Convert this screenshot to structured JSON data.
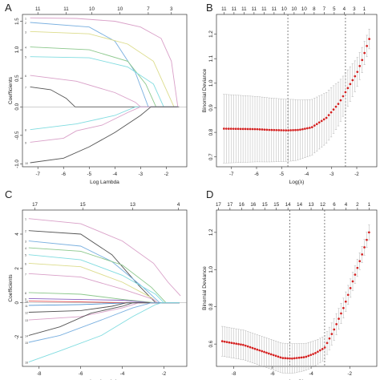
{
  "chart_data": [
    {
      "panel": "A",
      "type": "line",
      "xlabel": "Log Lambda",
      "ylabel": "Coefficients",
      "xlim": [
        -7.6,
        -1.2
      ],
      "ylim": [
        -1.05,
        1.62
      ],
      "xticks": [
        -7,
        -6,
        -5,
        -4,
        -3,
        -2
      ],
      "yticks": [
        -1.0,
        -0.5,
        0.0,
        0.5,
        1.0,
        1.5
      ],
      "top_axis": {
        "ticks": [
          -7.0,
          -5.9,
          -4.9,
          -3.8,
          -2.7,
          -1.8
        ],
        "labels": [
          "11",
          "11",
          "10",
          "10",
          "7",
          "3"
        ]
      },
      "series": [
        {
          "color": "#d9a0c8",
          "points": [
            [
              -7.3,
              1.56
            ],
            [
              -5.5,
              1.55
            ],
            [
              -4,
              1.5
            ],
            [
              -3,
              1.4
            ],
            [
              -2.2,
              1.2
            ],
            [
              -1.8,
              0.8
            ],
            [
              -1.55,
              0.0
            ]
          ]
        },
        {
          "color": "#7ab0e0",
          "points": [
            [
              -7.3,
              1.48
            ],
            [
              -5,
              1.4
            ],
            [
              -4,
              1.15
            ],
            [
              -3.2,
              0.6
            ],
            [
              -2.7,
              0.0
            ]
          ]
        },
        {
          "color": "#dcdc8c",
          "points": [
            [
              -7.3,
              1.32
            ],
            [
              -5,
              1.28
            ],
            [
              -3.5,
              1.1
            ],
            [
              -2.5,
              0.8
            ],
            [
              -2,
              0.3
            ],
            [
              -1.7,
              0.0
            ]
          ]
        },
        {
          "color": "#8cc88c",
          "points": [
            [
              -7.3,
              1.05
            ],
            [
              -5,
              1.0
            ],
            [
              -3.5,
              0.8
            ],
            [
              -2.8,
              0.4
            ],
            [
              -2.4,
              0.0
            ]
          ]
        },
        {
          "color": "#80dce0",
          "points": [
            [
              -7.3,
              0.88
            ],
            [
              -5,
              0.86
            ],
            [
              -3.5,
              0.7
            ],
            [
              -2.5,
              0.4
            ],
            [
              -2.1,
              0.0
            ]
          ]
        },
        {
          "color": "#d9a0c8",
          "points": [
            [
              -7.3,
              0.55
            ],
            [
              -5.5,
              0.45
            ],
            [
              -4,
              0.25
            ],
            [
              -3.2,
              0.08
            ],
            [
              -3.0,
              0.0
            ]
          ]
        },
        {
          "color": "#555555",
          "points": [
            [
              -7.3,
              0.35
            ],
            [
              -6.5,
              0.3
            ],
            [
              -5.9,
              0.15
            ],
            [
              -5.55,
              0.0
            ],
            [
              -1.5,
              0.0
            ]
          ]
        },
        {
          "color": "#80dce0",
          "points": [
            [
              -7.3,
              -0.4
            ],
            [
              -5.5,
              -0.3
            ],
            [
              -4,
              -0.15
            ],
            [
              -3.2,
              0.0
            ]
          ]
        },
        {
          "color": "#d9a0c8",
          "points": [
            [
              -7.3,
              -0.62
            ],
            [
              -6,
              -0.55
            ],
            [
              -5.5,
              -0.42
            ],
            [
              -4.5,
              -0.32
            ],
            [
              -3.5,
              -0.1
            ],
            [
              -3.0,
              0.0
            ]
          ]
        },
        {
          "color": "#555555",
          "points": [
            [
              -7.3,
              -0.98
            ],
            [
              -6,
              -0.9
            ],
            [
              -5,
              -0.7
            ],
            [
              -4,
              -0.45
            ],
            [
              -3,
              -0.15
            ],
            [
              -2.6,
              0.0
            ]
          ]
        }
      ]
    },
    {
      "panel": "B",
      "type": "line",
      "xlabel": "Log(λ)",
      "ylabel": "Binomial Deviance",
      "xlim": [
        -7.6,
        -1.2
      ],
      "ylim": [
        0.66,
        1.28
      ],
      "xticks": [
        -7,
        -6,
        -5,
        -4,
        -3,
        -2
      ],
      "yticks": [
        0.7,
        0.8,
        0.9,
        1.0,
        1.1,
        1.2
      ],
      "top_axis": {
        "ticks": [
          -7.3,
          -6.9,
          -6.5,
          -6.1,
          -5.7,
          -5.3,
          -4.9,
          -4.5,
          -4.1,
          -3.7,
          -3.3,
          -2.9,
          -2.5,
          -2.1,
          -1.7
        ],
        "labels": [
          "11",
          "11",
          "11",
          "11",
          "11",
          "11",
          "10",
          "10",
          "10",
          "8",
          "7",
          "5",
          "4",
          "3",
          "1"
        ]
      },
      "vlines": [
        -4.75,
        -2.45
      ],
      "curve": {
        "x_start": -7.3,
        "x_end": -1.5,
        "n": 62,
        "dev": [
          [
            -7.3,
            0.815
          ],
          [
            -6,
            0.813
          ],
          [
            -5.5,
            0.81
          ],
          [
            -4.8,
            0.808
          ],
          [
            -4.3,
            0.81
          ],
          [
            -3.8,
            0.82
          ],
          [
            -3.2,
            0.86
          ],
          [
            -2.7,
            0.92
          ],
          [
            -2.3,
            0.99
          ],
          [
            -2.0,
            1.04
          ],
          [
            -1.8,
            1.09
          ],
          [
            -1.5,
            1.18
          ]
        ],
        "se": [
          [
            -7.3,
            0.14
          ],
          [
            -4.5,
            0.125
          ],
          [
            -3,
            0.1
          ],
          [
            -1.5,
            0.04
          ]
        ]
      }
    },
    {
      "panel": "C",
      "type": "line",
      "xlabel": "Log Lambda",
      "ylabel": "Coefficients",
      "xlim": [
        -8.8,
        -0.9
      ],
      "ylim": [
        -3.7,
        5.4
      ],
      "xticks": [
        -8,
        -6,
        -4,
        -2
      ],
      "yticks": [
        -2,
        0,
        2,
        4
      ],
      "top_axis": {
        "ticks": [
          -8.2,
          -5.9,
          -3.5,
          -1.3
        ],
        "labels": [
          "17",
          "15",
          "13",
          "4"
        ]
      },
      "series": [
        {
          "color": "#d9a0c8",
          "points": [
            [
              -8.5,
              4.9
            ],
            [
              -6,
              4.6
            ],
            [
              -4,
              3.6
            ],
            [
              -2.5,
              2.3
            ],
            [
              -1.8,
              1.2
            ],
            [
              -1.2,
              0.4
            ]
          ]
        },
        {
          "color": "#555555",
          "points": [
            [
              -8.5,
              4.2
            ],
            [
              -6,
              4.0
            ],
            [
              -4.5,
              2.8
            ],
            [
              -3.2,
              1.0
            ],
            [
              -2.4,
              0.0
            ]
          ]
        },
        {
          "color": "#7ab0e0",
          "points": [
            [
              -8.5,
              3.6
            ],
            [
              -6,
              3.3
            ],
            [
              -4.5,
              2.4
            ],
            [
              -3,
              0.9
            ],
            [
              -2.2,
              0.0
            ]
          ]
        },
        {
          "color": "#8cc88c",
          "points": [
            [
              -8.5,
              3.2
            ],
            [
              -6,
              3.0
            ],
            [
              -4,
              2.2
            ],
            [
              -2.6,
              0.9
            ],
            [
              -1.9,
              0.0
            ]
          ]
        },
        {
          "color": "#80dce0",
          "points": [
            [
              -8.5,
              2.8
            ],
            [
              -6,
              2.5
            ],
            [
              -4,
              1.6
            ],
            [
              -2.4,
              0.5
            ],
            [
              -2.0,
              0.0
            ]
          ]
        },
        {
          "color": "#dcdc8c",
          "points": [
            [
              -8.5,
              2.3
            ],
            [
              -6,
              2.1
            ],
            [
              -4,
              1.2
            ],
            [
              -2.6,
              0.3
            ],
            [
              -2.3,
              0.0
            ]
          ]
        },
        {
          "color": "#d9a0c8",
          "points": [
            [
              -8.5,
              1.7
            ],
            [
              -6,
              1.5
            ],
            [
              -4,
              0.8
            ],
            [
              -2.5,
              0.2
            ],
            [
              -2.3,
              0.0
            ]
          ]
        },
        {
          "color": "#8cc88c",
          "points": [
            [
              -8.5,
              0.6
            ],
            [
              -6,
              0.5
            ],
            [
              -4,
              0.2
            ],
            [
              -2.4,
              0.0
            ]
          ]
        },
        {
          "color": "#8a60c0",
          "points": [
            [
              -8.5,
              0.25
            ],
            [
              -4,
              0.15
            ],
            [
              -2.6,
              0.0
            ]
          ]
        },
        {
          "color": "#e05050",
          "points": [
            [
              -8.5,
              0.1
            ],
            [
              -6,
              0.05
            ],
            [
              -3.5,
              0.0
            ]
          ]
        },
        {
          "color": "#4a90d0",
          "points": [
            [
              -8.5,
              -0.15
            ],
            [
              -6,
              -0.1
            ],
            [
              -3.6,
              0.0
            ]
          ]
        },
        {
          "color": "#555555",
          "points": [
            [
              -8.5,
              -0.55
            ],
            [
              -6,
              -0.45
            ],
            [
              -4.5,
              -0.2
            ],
            [
              -3.8,
              0.0
            ]
          ]
        },
        {
          "color": "#d9a0c8",
          "points": [
            [
              -8.5,
              -1.0
            ],
            [
              -6,
              -0.8
            ],
            [
              -4,
              -0.3
            ],
            [
              -3.2,
              0.0
            ]
          ]
        },
        {
          "color": "#555555",
          "points": [
            [
              -8.5,
              -1.9
            ],
            [
              -7,
              -1.4
            ],
            [
              -5.5,
              -0.6
            ],
            [
              -4,
              -0.2
            ],
            [
              -3.5,
              0.0
            ]
          ]
        },
        {
          "color": "#7ab0e0",
          "points": [
            [
              -8.5,
              -2.3
            ],
            [
              -7,
              -1.9
            ],
            [
              -5,
              -1.0
            ],
            [
              -3.5,
              -0.3
            ],
            [
              -2.6,
              0.0
            ]
          ]
        },
        {
          "color": "#80dce0",
          "points": [
            [
              -8.5,
              -3.45
            ],
            [
              -7,
              -2.8
            ],
            [
              -5,
              -1.9
            ],
            [
              -3.5,
              -0.8
            ],
            [
              -2.4,
              -0.1
            ],
            [
              -2.1,
              0.0
            ]
          ]
        }
      ]
    },
    {
      "panel": "D",
      "type": "line",
      "xlabel": "Log(λ)",
      "ylabel": "Binomial Deviance",
      "xlim": [
        -8.9,
        -0.6
      ],
      "ylim": [
        0.48,
        1.32
      ],
      "xticks": [
        -8,
        -6,
        -4,
        -2
      ],
      "yticks": [
        0.6,
        0.8,
        1.0,
        1.2
      ],
      "top_axis": {
        "ticks": [
          -8.8,
          -8.2,
          -7.6,
          -7.0,
          -6.4,
          -5.8,
          -5.2,
          -4.6,
          -4.0,
          -3.4,
          -2.8,
          -2.2,
          -1.6,
          -1.0
        ],
        "labels": [
          "17",
          "17",
          "16",
          "16",
          "15",
          "15",
          "14",
          "14",
          "13",
          "12",
          "6",
          "4",
          "2",
          "1"
        ]
      },
      "vlines": [
        -5.1,
        -3.3
      ],
      "curve": {
        "x_start": -8.6,
        "x_end": -1.0,
        "n": 64,
        "dev": [
          [
            -8.6,
            0.615
          ],
          [
            -7.5,
            0.595
          ],
          [
            -6.5,
            0.56
          ],
          [
            -5.5,
            0.525
          ],
          [
            -5.0,
            0.522
          ],
          [
            -4.3,
            0.53
          ],
          [
            -3.8,
            0.55
          ],
          [
            -3.3,
            0.58
          ],
          [
            -2.8,
            0.68
          ],
          [
            -2.3,
            0.8
          ],
          [
            -1.8,
            0.95
          ],
          [
            -1.3,
            1.1
          ],
          [
            -1.0,
            1.2
          ]
        ],
        "se": [
          [
            -8.6,
            0.08
          ],
          [
            -5,
            0.08
          ],
          [
            -3,
            0.06
          ],
          [
            -1,
            0.04
          ]
        ]
      }
    }
  ]
}
